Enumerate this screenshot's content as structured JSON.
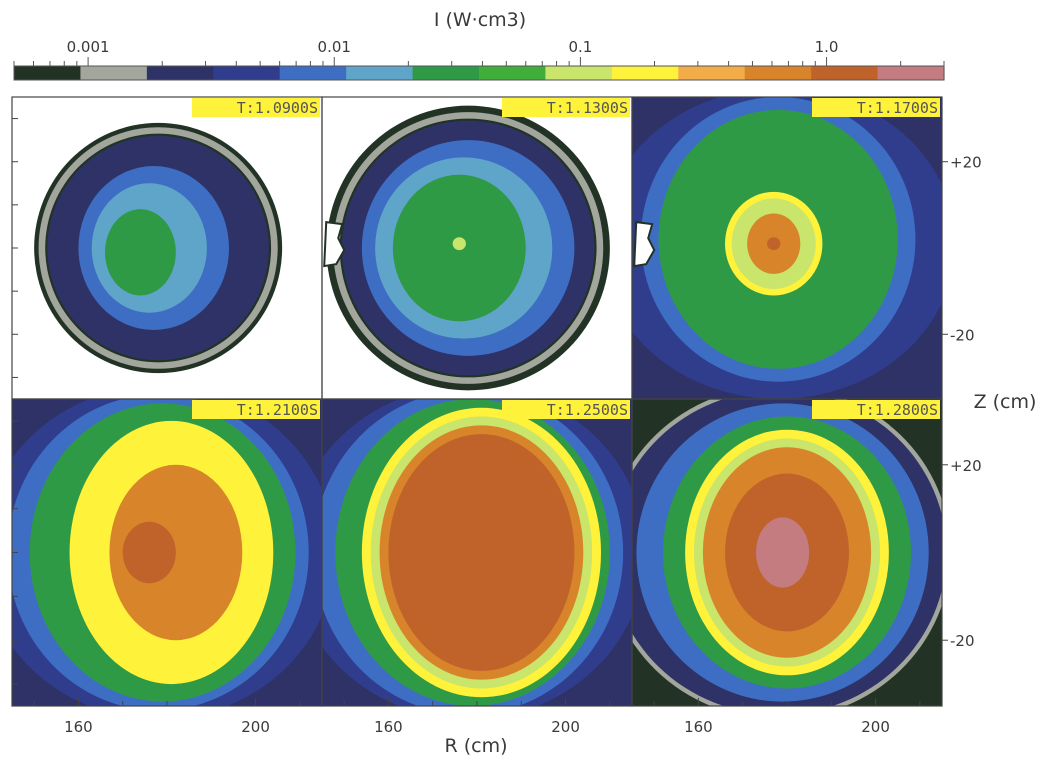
{
  "chart_data": {
    "type": "heatmap",
    "title": "I (W·cm3)",
    "colorbar": {
      "scale": "log",
      "range": [
        0.0005,
        3.0
      ],
      "tick_values": [
        0.001,
        0.01,
        0.1,
        1.0
      ],
      "tick_labels": [
        "0.001",
        "0.01",
        "0.1",
        "1.0"
      ],
      "colors": [
        "#223326",
        "#a2a69c",
        "#2e3266",
        "#2f3d8c",
        "#3e6ec4",
        "#5fa5c9",
        "#2f9a46",
        "#42ae3a",
        "#c9e56c",
        "#fff23a",
        "#f2ad4a",
        "#d8842a",
        "#c0632a",
        "#c47c80"
      ]
    },
    "xlabel": "R (cm)",
    "ylabel": "Z (cm)",
    "x_ticks": [
      160,
      200
    ],
    "y_ticks": [
      20,
      -20
    ],
    "y_tick_labels": [
      "+20",
      "-20"
    ],
    "xlim": [
      145,
      215
    ],
    "ylim": [
      -35,
      35
    ],
    "panels": [
      {
        "time_label": "T:1.0900S",
        "background": "#ffffff",
        "port": false,
        "contours": [
          {
            "level_index": 0,
            "cx": 178,
            "cy": 0,
            "rx": 28,
            "ry": 29
          },
          {
            "level_index": 1,
            "cx": 178,
            "cy": 0,
            "rx": 27,
            "ry": 28
          },
          {
            "level_index": 0,
            "cx": 178,
            "cy": 0,
            "rx": 25.5,
            "ry": 26.5
          },
          {
            "level_index": 2,
            "cx": 178,
            "cy": 0,
            "rx": 25,
            "ry": 26
          },
          {
            "level_index": 4,
            "cx": 177,
            "cy": 0,
            "rx": 17,
            "ry": 19
          },
          {
            "level_index": 5,
            "cx": 176,
            "cy": 0,
            "rx": 13,
            "ry": 15
          },
          {
            "level_index": 6,
            "cx": 174,
            "cy": -1,
            "rx": 8,
            "ry": 10
          }
        ]
      },
      {
        "time_label": "T:1.1300S",
        "background": "#ffffff",
        "port": true,
        "contours": [
          {
            "level_index": 0,
            "cx": 178,
            "cy": 0,
            "rx": 32,
            "ry": 33
          },
          {
            "level_index": 1,
            "cx": 178,
            "cy": 0,
            "rx": 30.5,
            "ry": 31.5
          },
          {
            "level_index": 0,
            "cx": 178,
            "cy": 0,
            "rx": 29,
            "ry": 30
          },
          {
            "level_index": 2,
            "cx": 178,
            "cy": 0,
            "rx": 28.5,
            "ry": 29.5
          },
          {
            "level_index": 4,
            "cx": 178,
            "cy": 0,
            "rx": 24,
            "ry": 25
          },
          {
            "level_index": 5,
            "cx": 177,
            "cy": 0,
            "rx": 20,
            "ry": 21
          },
          {
            "level_index": 6,
            "cx": 176,
            "cy": 0,
            "rx": 15,
            "ry": 17
          },
          {
            "level_index": 8,
            "cx": 176,
            "cy": 1,
            "rx": 1.5,
            "ry": 1.5
          }
        ]
      },
      {
        "time_label": "T:1.1700S",
        "background": "#2e3266",
        "port": true,
        "contours": [
          {
            "level_index": 3,
            "cx": 178,
            "cy": 1,
            "rx": 40,
            "ry": 36
          },
          {
            "level_index": 4,
            "cx": 178,
            "cy": 2,
            "rx": 31,
            "ry": 33
          },
          {
            "level_index": 6,
            "cx": 178,
            "cy": 2,
            "rx": 27,
            "ry": 30
          },
          {
            "level_index": 9,
            "cx": 177,
            "cy": 1,
            "rx": 11,
            "ry": 12
          },
          {
            "level_index": 8,
            "cx": 177,
            "cy": 1,
            "rx": 9.5,
            "ry": 10.5
          },
          {
            "level_index": 11,
            "cx": 177,
            "cy": 1,
            "rx": 6,
            "ry": 7
          },
          {
            "level_index": 12,
            "cx": 177,
            "cy": 1,
            "rx": 1.5,
            "ry": 1.5
          }
        ]
      },
      {
        "time_label": "T:1.2100S",
        "background": "#2e3266",
        "port": false,
        "contours": [
          {
            "level_index": 3,
            "cx": 178,
            "cy": 0,
            "rx": 40,
            "ry": 38
          },
          {
            "level_index": 4,
            "cx": 178,
            "cy": 0,
            "rx": 34,
            "ry": 36
          },
          {
            "level_index": 6,
            "cx": 179,
            "cy": 0,
            "rx": 30,
            "ry": 34
          },
          {
            "level_index": 9,
            "cx": 181,
            "cy": 0,
            "rx": 23,
            "ry": 30
          },
          {
            "level_index": 11,
            "cx": 182,
            "cy": 0,
            "rx": 15,
            "ry": 20
          },
          {
            "level_index": 12,
            "cx": 176,
            "cy": 0,
            "rx": 6,
            "ry": 7
          }
        ]
      },
      {
        "time_label": "T:1.2500S",
        "background": "#2e3266",
        "port": false,
        "contours": [
          {
            "level_index": 3,
            "cx": 178,
            "cy": 0,
            "rx": 40,
            "ry": 38
          },
          {
            "level_index": 4,
            "cx": 178,
            "cy": 0,
            "rx": 35,
            "ry": 37
          },
          {
            "level_index": 6,
            "cx": 179,
            "cy": 0,
            "rx": 31,
            "ry": 35
          },
          {
            "level_index": 9,
            "cx": 181,
            "cy": 0,
            "rx": 27,
            "ry": 33
          },
          {
            "level_index": 8,
            "cx": 181,
            "cy": 0,
            "rx": 25,
            "ry": 31
          },
          {
            "level_index": 11,
            "cx": 181,
            "cy": 0,
            "rx": 23,
            "ry": 29
          },
          {
            "level_index": 12,
            "cx": 181,
            "cy": 0,
            "rx": 21,
            "ry": 27
          }
        ]
      },
      {
        "time_label": "T:1.2800S",
        "background": "#223326",
        "port": false,
        "contours": [
          {
            "level_index": 1,
            "cx": 178,
            "cy": 0,
            "rx": 39,
            "ry": 38
          },
          {
            "level_index": 2,
            "cx": 178,
            "cy": 0,
            "rx": 38,
            "ry": 37
          },
          {
            "level_index": 4,
            "cx": 179,
            "cy": 0,
            "rx": 33,
            "ry": 34
          },
          {
            "level_index": 6,
            "cx": 180,
            "cy": 0,
            "rx": 28,
            "ry": 31
          },
          {
            "level_index": 9,
            "cx": 180,
            "cy": 0,
            "rx": 23,
            "ry": 28
          },
          {
            "level_index": 8,
            "cx": 180,
            "cy": 0,
            "rx": 21,
            "ry": 26
          },
          {
            "level_index": 11,
            "cx": 180,
            "cy": 0,
            "rx": 19,
            "ry": 24
          },
          {
            "level_index": 12,
            "cx": 180,
            "cy": 0,
            "rx": 14,
            "ry": 18
          },
          {
            "level_index": 13,
            "cx": 179,
            "cy": 0,
            "rx": 6,
            "ry": 8
          }
        ]
      }
    ]
  }
}
